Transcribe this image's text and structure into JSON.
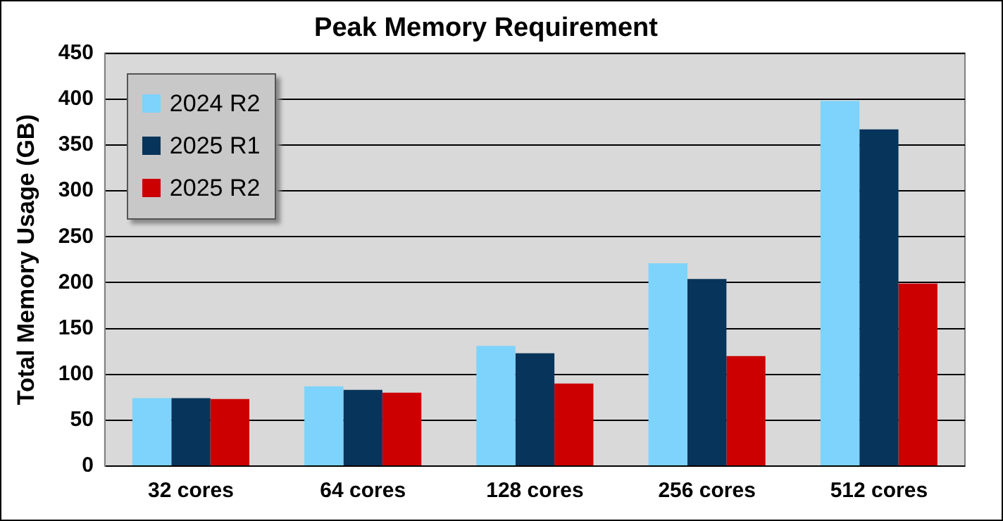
{
  "chart_data": {
    "type": "bar",
    "title": "Peak Memory Requirement",
    "ylabel": "Total Memory Usage (GB)",
    "categories": [
      "32 cores",
      "64 cores",
      "128 cores",
      "256 cores",
      "512 cores"
    ],
    "series": [
      {
        "name": "2024 R2",
        "color": "#7dd3fb",
        "values": [
          74,
          87,
          131,
          221,
          398
        ]
      },
      {
        "name": "2025 R1",
        "color": "#07345a",
        "values": [
          74,
          83,
          123,
          204,
          367
        ]
      },
      {
        "name": "2025 R2",
        "color": "#cc0000",
        "values": [
          73,
          80,
          90,
          120,
          199
        ]
      }
    ],
    "ylim": [
      0,
      450
    ],
    "yticks": [
      0,
      50,
      100,
      150,
      200,
      250,
      300,
      350,
      400,
      450
    ],
    "grid": "y",
    "legend": "top left"
  }
}
